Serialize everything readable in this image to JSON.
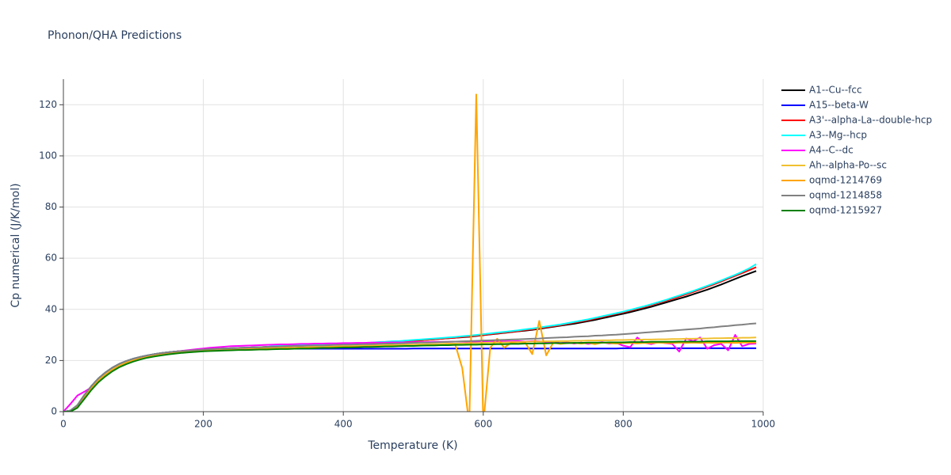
{
  "chart_data": {
    "type": "line",
    "title": "Phonon/QHA Predictions",
    "x_label": "Temperature (K)",
    "y_label": "Cp numerical (J/K/mol)",
    "xlim": [
      0,
      1000
    ],
    "xticks": [
      0,
      200,
      400,
      600,
      800,
      1000
    ],
    "ylim": [
      0,
      130
    ],
    "yticks": [
      0,
      20,
      40,
      60,
      80,
      100,
      120
    ],
    "grid": true,
    "legend": "right",
    "x": [
      0,
      10,
      20,
      30,
      40,
      50,
      60,
      70,
      80,
      90,
      100,
      110,
      120,
      130,
      140,
      150,
      160,
      170,
      180,
      190,
      200,
      210,
      220,
      230,
      240,
      250,
      260,
      270,
      280,
      290,
      300,
      310,
      320,
      330,
      340,
      350,
      360,
      370,
      380,
      390,
      400,
      410,
      420,
      430,
      440,
      450,
      460,
      470,
      480,
      490,
      500,
      510,
      520,
      530,
      540,
      550,
      560,
      570,
      580,
      590,
      600,
      610,
      620,
      630,
      640,
      650,
      660,
      670,
      680,
      690,
      700,
      710,
      720,
      730,
      740,
      750,
      760,
      770,
      780,
      790,
      800,
      810,
      820,
      830,
      840,
      850,
      860,
      870,
      880,
      890,
      900,
      910,
      920,
      930,
      940,
      950,
      960,
      970,
      980,
      990
    ],
    "series": [
      {
        "name": "A1--Cu--fcc",
        "color": "#000000",
        "values": [
          0,
          0.4,
          2.5,
          6.5,
          10,
          13,
          15.3,
          17.2,
          18.7,
          19.8,
          20.7,
          21.4,
          22,
          22.5,
          22.9,
          23.2,
          23.5,
          23.7,
          23.9,
          24.1,
          24.3,
          24.5,
          24.6,
          24.7,
          24.8,
          24.9,
          25,
          25.1,
          25.2,
          25.3,
          25.4,
          25.5,
          25.6,
          25.7,
          25.8,
          25.9,
          26,
          26.1,
          26.2,
          26.3,
          26.4,
          26.5,
          26.6,
          26.7,
          26.8,
          26.9,
          27,
          27.2,
          27.3,
          27.5,
          27.7,
          27.9,
          28.1,
          28.3,
          28.5,
          28.7,
          28.9,
          29.1,
          29.3,
          29.6,
          29.9,
          30.2,
          30.5,
          30.8,
          31.1,
          31.4,
          31.7,
          32,
          32.4,
          32.8,
          33.2,
          33.6,
          34,
          34.4,
          34.9,
          35.4,
          35.9,
          36.5,
          37.1,
          37.7,
          38.3,
          38.9,
          39.6,
          40.3,
          41,
          41.8,
          42.6,
          43.4,
          44.2,
          45,
          45.9,
          46.8,
          47.7,
          48.7,
          49.7,
          50.8,
          51.9,
          53,
          54,
          55
        ]
      },
      {
        "name": "A15--beta-W",
        "color": "#0000ff",
        "values": [
          0,
          0.4,
          2.5,
          6.5,
          10,
          13,
          15.3,
          17.2,
          18.7,
          19.8,
          20.7,
          21.4,
          22,
          22.5,
          22.9,
          23.2,
          23.5,
          23.7,
          23.9,
          24.1,
          24.2,
          24.3,
          24.3,
          24.4,
          24.4,
          24.5,
          24.5,
          24.5,
          24.5,
          24.6,
          24.6,
          24.6,
          24.6,
          24.6,
          24.6,
          24.6,
          24.6,
          24.6,
          24.6,
          24.6,
          24.6,
          24.6,
          24.6,
          24.6,
          24.6,
          24.6,
          24.6,
          24.6,
          24.6,
          24.6,
          24.7,
          24.7,
          24.7,
          24.7,
          24.7,
          24.7,
          24.7,
          24.7,
          24.7,
          24.7,
          24.7,
          24.7,
          24.7,
          24.7,
          24.7,
          24.7,
          24.7,
          24.7,
          24.7,
          24.7,
          24.7,
          24.7,
          24.7,
          24.7,
          24.7,
          24.7,
          24.7,
          24.7,
          24.7,
          24.7,
          24.8,
          24.8,
          24.8,
          24.8,
          24.8,
          24.8,
          24.8,
          24.8,
          24.8,
          24.8,
          24.8,
          24.8,
          24.8,
          24.8,
          24.8,
          24.8,
          24.8,
          24.8,
          24.8,
          24.8
        ]
      },
      {
        "name": "A3'--alpha-La--double-hcp",
        "color": "#ff0000",
        "values": [
          0,
          0.4,
          2.5,
          6.5,
          10,
          13,
          15.3,
          17.2,
          18.7,
          19.8,
          20.7,
          21.4,
          22,
          22.5,
          22.9,
          23.2,
          23.5,
          23.7,
          23.9,
          24.1,
          24.3,
          24.5,
          24.6,
          24.7,
          24.8,
          24.9,
          25,
          25.1,
          25.2,
          25.3,
          25.4,
          25.5,
          25.6,
          25.7,
          25.8,
          25.9,
          26,
          26.1,
          26.2,
          26.3,
          26.4,
          26.5,
          26.6,
          26.7,
          26.8,
          26.9,
          27,
          27.2,
          27.3,
          27.5,
          27.7,
          27.9,
          28.1,
          28.3,
          28.5,
          28.7,
          28.9,
          29.2,
          29.4,
          29.7,
          30,
          30.3,
          30.6,
          30.9,
          31.2,
          31.5,
          31.9,
          32.2,
          32.6,
          33,
          33.4,
          33.8,
          34.3,
          34.8,
          35.3,
          35.8,
          36.4,
          37,
          37.6,
          38.2,
          38.8,
          39.5,
          40.2,
          40.9,
          41.7,
          42.5,
          43.3,
          44.1,
          45,
          45.9,
          46.8,
          47.8,
          48.8,
          49.8,
          50.9,
          52,
          53.1,
          54.2,
          55.3,
          56.5
        ]
      },
      {
        "name": "A3--Mg--hcp",
        "color": "#00ffff",
        "values": [
          0,
          0.4,
          2.5,
          6.5,
          10,
          13,
          15.3,
          17.2,
          18.7,
          19.8,
          20.7,
          21.4,
          22,
          22.5,
          22.9,
          23.2,
          23.5,
          23.7,
          23.9,
          24.1,
          24.3,
          24.5,
          24.6,
          24.7,
          24.8,
          24.9,
          25,
          25.1,
          25.2,
          25.3,
          25.6,
          25.7,
          25.8,
          25.9,
          26,
          26.1,
          26.2,
          26.3,
          26.4,
          26.5,
          26.6,
          26.7,
          26.8,
          26.9,
          27,
          27.2,
          27.3,
          27.5,
          27.6,
          27.8,
          28,
          28.2,
          28.4,
          28.6,
          28.8,
          29,
          29.2,
          29.5,
          29.7,
          30,
          30.3,
          30.6,
          30.9,
          31.2,
          31.5,
          31.8,
          32.2,
          32.5,
          32.9,
          33.3,
          33.7,
          34.1,
          34.6,
          35.1,
          35.6,
          36.1,
          36.7,
          37.3,
          37.9,
          38.5,
          39.1,
          39.8,
          40.5,
          41.2,
          42,
          42.8,
          43.6,
          44.5,
          45.4,
          46.3,
          47.2,
          48.2,
          49.2,
          50.2,
          51.3,
          52.4,
          53.5,
          54.7,
          56,
          57.7
        ]
      },
      {
        "name": "A4--C--dc",
        "color": "#ff00ff",
        "values": [
          0,
          3,
          6.3,
          7.8,
          9.5,
          12,
          14.5,
          16.5,
          18,
          19.3,
          20.2,
          21,
          21.6,
          22.2,
          22.7,
          23.1,
          23.5,
          23.8,
          24.1,
          24.4,
          24.7,
          25,
          25.2,
          25.4,
          25.6,
          25.7,
          25.8,
          25.9,
          26,
          26.1,
          26.2,
          26.3,
          26.3,
          26.4,
          26.5,
          26.5,
          26.6,
          26.6,
          26.7,
          26.7,
          26.8,
          26.8,
          26.9,
          26.9,
          27,
          27,
          27,
          27.1,
          27.1,
          27.1,
          27.2,
          27.2,
          27.2,
          27.3,
          27.3,
          27.3,
          27.4,
          27.4,
          27.4,
          27.4,
          27.5,
          27.5,
          27.5,
          27.5,
          27.5,
          27.6,
          27.4,
          27.6,
          27.5,
          27.2,
          27.3,
          26.8,
          27.1,
          26.6,
          27,
          26.5,
          26.8,
          27.2,
          26.6,
          26.9,
          25.8,
          25.2,
          29,
          27,
          26.4,
          27.2,
          26.8,
          26.5,
          23.5,
          28.6,
          27.6,
          29,
          24.6,
          26,
          26.5,
          24,
          30,
          25.6,
          26.5,
          26.6
        ]
      },
      {
        "name": "Ah--alpha-Po--sc",
        "color": "#f0c030",
        "values": [
          0,
          0.2,
          2,
          5.8,
          9.2,
          12.2,
          14.5,
          16.5,
          18,
          19.2,
          20.1,
          20.8,
          21.4,
          21.9,
          22.3,
          22.6,
          22.9,
          23.2,
          23.4,
          23.6,
          23.8,
          23.9,
          24,
          24.1,
          24.2,
          24.3,
          24.4,
          24.5,
          24.6,
          24.7,
          24.8,
          24.9,
          25,
          25,
          25.1,
          25.2,
          25.3,
          25.3,
          25.4,
          25.5,
          25.6,
          25.6,
          25.7,
          25.8,
          25.8,
          25.9,
          26,
          26,
          26.1,
          26.2,
          26.2,
          26.3,
          26.4,
          26.4,
          26.5,
          26.6,
          26.6,
          26.7,
          26.8,
          26.8,
          26.9,
          27,
          27,
          27.1,
          27.2,
          27.2,
          27.3,
          27.4,
          27.4,
          27.5,
          27.5,
          27.6,
          27.6,
          27.7,
          27.7,
          27.8,
          27.8,
          27.9,
          27.9,
          28,
          28,
          28.1,
          28.1,
          28.2,
          28.2,
          28.3,
          28.3,
          28.4,
          28.4,
          28.5,
          28.5,
          28.6,
          28.6,
          28.7,
          28.7,
          28.8,
          28.8,
          28.9,
          28.9,
          29
        ]
      },
      {
        "name": "oqmd-1214769",
        "color": "#ffa500",
        "values": [
          0,
          0,
          1.8,
          5.5,
          9,
          12,
          14.3,
          16.2,
          17.8,
          19,
          19.9,
          20.7,
          21.3,
          21.8,
          22.2,
          22.6,
          22.9,
          23.1,
          23.3,
          23.5,
          23.7,
          23.8,
          23.9,
          24,
          24.1,
          24.2,
          24.3,
          24.4,
          24.5,
          24.6,
          24.7,
          24.8,
          24.8,
          24.9,
          25,
          25,
          25.1,
          25.1,
          25.2,
          25.3,
          25.3,
          25.4,
          25.4,
          25.5,
          25.5,
          25.6,
          25.6,
          25.7,
          25.7,
          25.8,
          25.8,
          25.9,
          25.9,
          26,
          26,
          26.1,
          26.2,
          17,
          -5,
          124,
          -5,
          25,
          28.5,
          25,
          27,
          26.5,
          27,
          22.5,
          35.5,
          22,
          27,
          26.5,
          26.8,
          26.9,
          26.6,
          26.9,
          26.4,
          27,
          26.8,
          26.6,
          26.8,
          26.9,
          26.7,
          26.9,
          26.8,
          27,
          26.9,
          26.8,
          27,
          26.9,
          27,
          26.9,
          27,
          26.9,
          27,
          27,
          26.9,
          27,
          27,
          27
        ]
      },
      {
        "name": "oqmd-1214858",
        "color": "#808080",
        "values": [
          0,
          0.4,
          2.5,
          6.5,
          10,
          13,
          15.3,
          17.2,
          18.7,
          19.8,
          20.7,
          21.4,
          22,
          22.5,
          22.9,
          23.2,
          23.5,
          23.7,
          23.9,
          24.1,
          24.3,
          24.5,
          24.6,
          24.7,
          24.8,
          24.9,
          25,
          25.1,
          25.2,
          25.3,
          25.4,
          25.5,
          25.6,
          25.7,
          25.7,
          25.8,
          25.9,
          25.9,
          26,
          26.1,
          26.2,
          26.2,
          26.3,
          26.4,
          26.4,
          26.5,
          26.6,
          26.6,
          26.7,
          26.8,
          26.9,
          27,
          27,
          27.1,
          27.2,
          27.3,
          27.4,
          27.5,
          27.6,
          27.7,
          27.8,
          27.9,
          28,
          28.1,
          28.2,
          28.3,
          28.4,
          28.5,
          28.6,
          28.8,
          28.9,
          29,
          29.1,
          29.3,
          29.4,
          29.5,
          29.7,
          29.8,
          30,
          30.1,
          30.3,
          30.5,
          30.7,
          30.9,
          31.1,
          31.3,
          31.5,
          31.7,
          31.9,
          32.1,
          32.3,
          32.5,
          32.8,
          33,
          33.3,
          33.5,
          33.8,
          34,
          34.3,
          34.5
        ]
      },
      {
        "name": "oqmd-1215927",
        "color": "#008000",
        "values": [
          0,
          0,
          1.5,
          5,
          8.5,
          11.5,
          13.8,
          15.8,
          17.4,
          18.6,
          19.6,
          20.4,
          21.1,
          21.6,
          22,
          22.4,
          22.7,
          23,
          23.2,
          23.4,
          23.6,
          23.7,
          23.8,
          23.9,
          24,
          24.1,
          24.1,
          24.2,
          24.3,
          24.3,
          24.4,
          24.5,
          24.5,
          24.6,
          24.7,
          24.7,
          24.8,
          24.9,
          24.9,
          25,
          25.1,
          25.1,
          25.2,
          25.3,
          25.3,
          25.4,
          25.5,
          25.5,
          25.6,
          25.7,
          25.7,
          25.8,
          25.9,
          25.9,
          26,
          26,
          26.1,
          26.1,
          26.2,
          26.2,
          26.3,
          26.3,
          26.4,
          26.4,
          26.5,
          26.5,
          26.6,
          26.6,
          26.7,
          26.7,
          26.8,
          26.8,
          26.8,
          26.9,
          26.9,
          27,
          27,
          27,
          27.1,
          27.1,
          27.1,
          27.2,
          27.2,
          27.2,
          27.3,
          27.3,
          27.3,
          27.3,
          27.4,
          27.4,
          27.4,
          27.4,
          27.5,
          27.5,
          27.5,
          27.5,
          27.6,
          27.6,
          27.6,
          27.6
        ]
      }
    ]
  }
}
